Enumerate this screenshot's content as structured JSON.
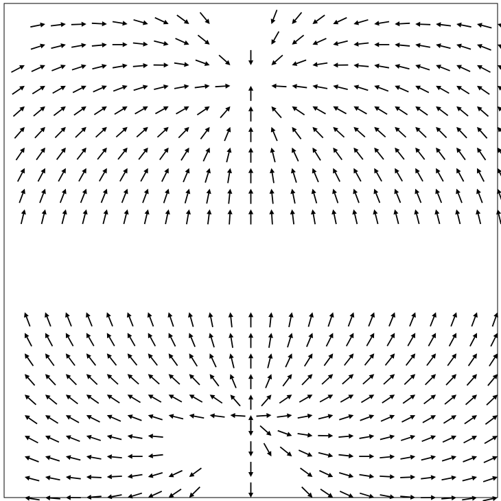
{
  "chart_data": {
    "type": "quiver",
    "title": "",
    "xlabel": "",
    "ylabel": "",
    "grid": false,
    "legend": "none",
    "xlim": [
      -12,
      12
    ],
    "ylim": [
      -12,
      12
    ],
    "field": {
      "upper_sink": [
        0,
        8
      ],
      "lower_source": [
        0,
        -8
      ],
      "strength": 6,
      "blank_y_range": [
        -2.4,
        2.4
      ],
      "x_values": [
        -11,
        -10,
        -9,
        -8,
        -7,
        -6,
        -5,
        -4,
        -3,
        -2,
        -1,
        0,
        1,
        2,
        3,
        4,
        5,
        6,
        7,
        8,
        9,
        10,
        11,
        12
      ],
      "upper_y_values": [
        11,
        10,
        9,
        8,
        7,
        6,
        5,
        4,
        3,
        2
      ],
      "lower_y_values": [
        -3,
        -4,
        -5,
        -6,
        -7,
        -8,
        -9,
        -10,
        -11,
        -12
      ],
      "excluded_cells": [
        {
          "xs": [
            -12,
            -11
          ],
          "ys": [
            11,
            10
          ]
        },
        {
          "xs": [
            -1,
            0
          ],
          "ys": [
            11,
            10
          ]
        },
        {
          "xs": [
            -4,
            -3,
            -2,
            -1
          ],
          "ys": [
            -9,
            -10
          ]
        },
        {
          "xs": [
            -2,
            -1
          ],
          "ys": [
            -11,
            -12
          ]
        },
        {
          "xs": [
            1,
            2
          ],
          "ys": [
            -11,
            -12
          ]
        }
      ]
    },
    "colors": {
      "arrow": "#000000",
      "frame": "#000000",
      "background": "#ffffff"
    }
  }
}
